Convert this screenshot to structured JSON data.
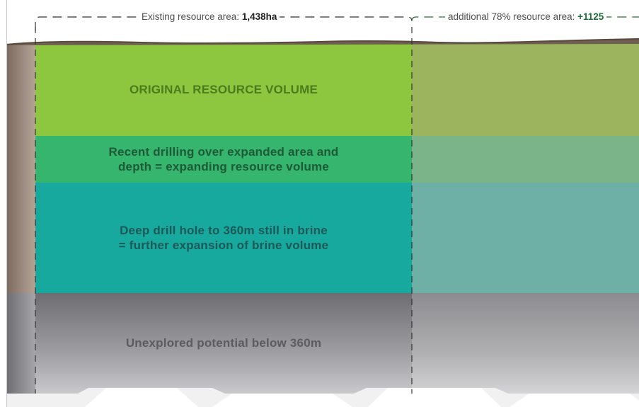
{
  "header": {
    "existing": {
      "label": "Existing resource area:",
      "value": "1,438ha"
    },
    "additional": {
      "label": "additional 78% resource area:",
      "value": "+1125"
    }
  },
  "bands": {
    "original": {
      "label": "ORIGINAL RESOURCE VOLUME",
      "color": "#8dc63f",
      "color_right": "#9db45e"
    },
    "recent": {
      "line1": "Recent drilling over expanded area and",
      "line2": "depth = expanding resource volume",
      "color": "#35b56d",
      "color_right": "#7cb48a"
    },
    "deep": {
      "line1": "Deep drill hole to 360m still in brine",
      "line2": "= further expansion of brine volume",
      "color": "#17a89e",
      "color_right": "#6fb0a6"
    },
    "unexplored": {
      "label": "Unexplored potential below 360m",
      "color": "#8e8e93"
    }
  },
  "colors": {
    "ground_edge": "#9a8678",
    "boundary_line": "#333333"
  }
}
